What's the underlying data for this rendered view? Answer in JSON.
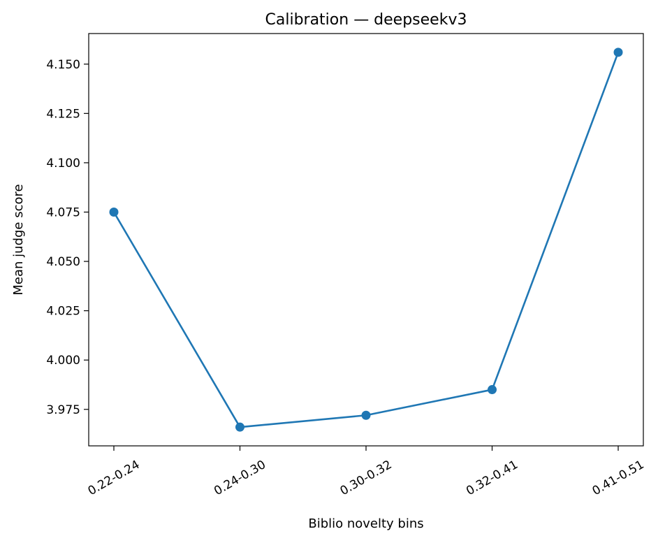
{
  "chart_data": {
    "type": "line",
    "title": "Calibration — deepseekv3",
    "xlabel": "Biblio novelty bins",
    "ylabel": "Mean judge score",
    "categories": [
      "0.22-0.24",
      "0.24-0.30",
      "0.30-0.32",
      "0.32-0.41",
      "0.41-0.51"
    ],
    "series": [
      {
        "values": [
          4.075,
          3.966,
          3.972,
          3.985,
          4.156
        ],
        "color": "#1f77b4"
      }
    ],
    "ylim": [
      3.9565,
      4.1655
    ],
    "yticks": [
      "3.975",
      "4.000",
      "4.025",
      "4.050",
      "4.075",
      "4.100",
      "4.125",
      "4.150"
    ],
    "grid": false,
    "marker": "circle"
  }
}
